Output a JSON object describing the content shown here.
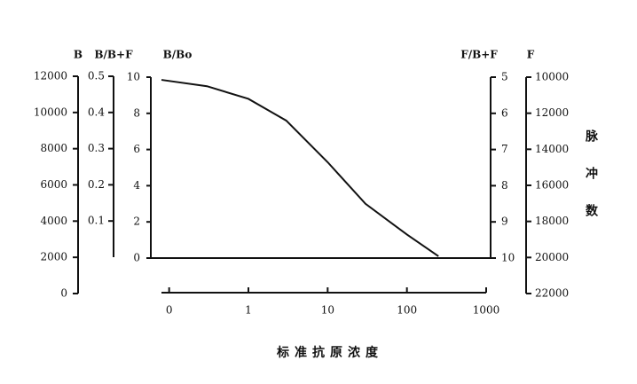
{
  "chart_data": {
    "type": "line",
    "xlabel": "标准抗原浓度",
    "xscale": "log",
    "xlim": [
      0.08,
      1000
    ],
    "xticks": [
      {
        "value": 0.1,
        "label": "0"
      },
      1,
      10,
      100,
      1000
    ],
    "x": [
      0.08,
      0.3,
      1,
      3,
      10,
      30,
      100,
      250
    ],
    "values": [
      9.85,
      9.5,
      8.8,
      7.6,
      5.3,
      3.0,
      1.3,
      0.1
    ],
    "color": "#111111",
    "ylabel": "B/Bo",
    "ylim": [
      0,
      10
    ],
    "yticks": [
      0,
      2,
      4,
      6,
      8,
      10
    ],
    "extra_axes": [
      {
        "side": "left",
        "label": "B",
        "lim": [
          0,
          12000
        ],
        "ticks": [
          0,
          2000,
          4000,
          6000,
          8000,
          10000,
          12000
        ]
      },
      {
        "side": "left",
        "label": "B/B+F",
        "lim": [
          0,
          0.5
        ],
        "ticks": [
          0.1,
          0.2,
          0.3,
          0.4,
          0.5
        ]
      },
      {
        "side": "right",
        "label": "F/B+F",
        "lim": [
          10,
          5
        ],
        "ticks": [
          5,
          6,
          7,
          8,
          9,
          10
        ]
      },
      {
        "side": "right",
        "label": "F",
        "lim": [
          22000,
          10000
        ],
        "ticks": [
          10000,
          12000,
          14000,
          16000,
          18000,
          20000,
          22000
        ],
        "title": "脉冲数"
      }
    ]
  }
}
